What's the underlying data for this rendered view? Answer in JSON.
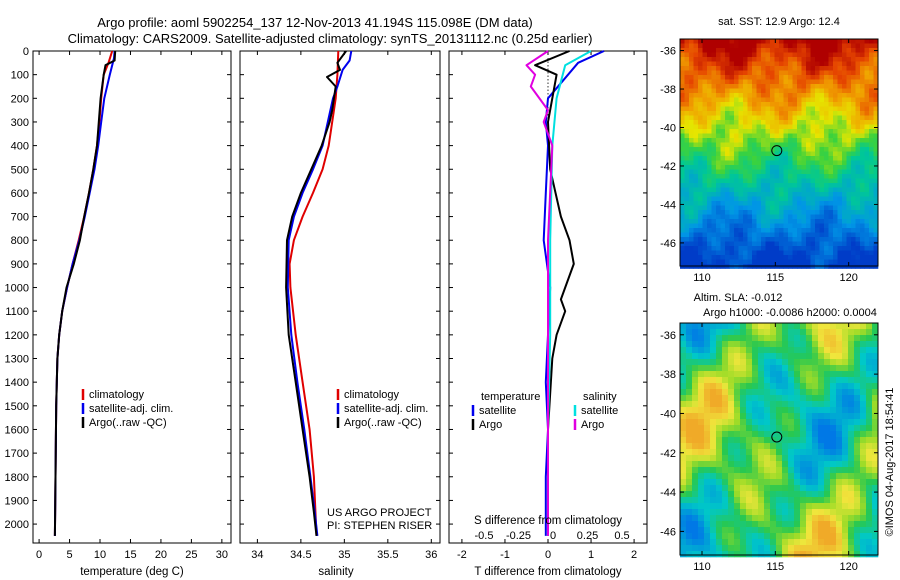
{
  "header": {
    "title_line1": "Argo profile: aoml 5902254_137 12-Nov-2013 41.194S 115.098E (DM data)",
    "title_line2": "Climatology: CARS2009. Satellite-adjusted climatology: synTS_20131112.nc (0.25d earlier)"
  },
  "colors": {
    "climatology": "#e00000",
    "satellite": "#0000ee",
    "argo": "#000000",
    "sat_salinity": "#00e0e0",
    "argo_salinity": "#e000e0"
  },
  "chart_data": [
    {
      "type": "line",
      "name": "temperature-profile",
      "xlabel": "temperature (deg C)",
      "ylabel": "",
      "xlim": [
        -1,
        31.5
      ],
      "ylim": [
        2080,
        0
      ],
      "xticks": [
        0,
        5,
        10,
        15,
        20,
        25,
        30
      ],
      "yticks": [
        0,
        100,
        200,
        300,
        400,
        500,
        600,
        700,
        800,
        900,
        1000,
        1100,
        1200,
        1300,
        1400,
        1500,
        1600,
        1700,
        1800,
        1900,
        2000
      ],
      "series": [
        {
          "name": "climatology",
          "color": "#e00000",
          "x": [
            12.0,
            11.4,
            10.6,
            10.2,
            9.9,
            9.5,
            8.9,
            8.2,
            7.4,
            6.5,
            5.5,
            4.6,
            3.8,
            3.3,
            3.0,
            2.8,
            2.7,
            2.6
          ],
          "y": [
            0,
            50,
            100,
            200,
            300,
            400,
            500,
            600,
            700,
            800,
            900,
            1000,
            1100,
            1200,
            1300,
            1500,
            1800,
            2050
          ]
        },
        {
          "name": "satellite-adj. clim.",
          "color": "#0000ee",
          "x": [
            12.4,
            12.3,
            11.6,
            10.7,
            10.2,
            9.7,
            9.1,
            8.3,
            7.5,
            6.6,
            5.5,
            4.6,
            3.8,
            3.3,
            3.0,
            2.8,
            2.7,
            2.6
          ],
          "y": [
            0,
            30,
            100,
            200,
            300,
            400,
            500,
            600,
            700,
            800,
            900,
            1000,
            1100,
            1200,
            1300,
            1500,
            1800,
            2050
          ]
        },
        {
          "name": "Argo(..raw -QC)",
          "color": "#000000",
          "x": [
            12.5,
            12.4,
            10.9,
            10.6,
            10.1,
            9.8,
            9.5,
            8.9,
            8.2,
            7.4,
            6.7,
            5.7,
            4.5,
            3.8,
            3.3,
            3.0,
            2.8,
            2.7,
            2.6
          ],
          "y": [
            0,
            40,
            60,
            100,
            200,
            300,
            400,
            500,
            600,
            700,
            800,
            900,
            1000,
            1100,
            1200,
            1300,
            1500,
            1800,
            2050
          ]
        }
      ],
      "legend": {
        "placement": "lower-right",
        "entries": [
          "climatology",
          "satellite-adj. clim.",
          "Argo(..raw -QC)"
        ]
      }
    },
    {
      "type": "line",
      "name": "salinity-profile",
      "xlabel": "salinity",
      "ylabel": "",
      "xlim": [
        33.8,
        36.1
      ],
      "ylim": [
        2080,
        0
      ],
      "xticks": [
        34,
        34.5,
        35,
        35.5,
        36
      ],
      "xtick_labels": [
        "34",
        "34.5",
        "35",
        "35.5",
        "36"
      ],
      "series": [
        {
          "name": "climatology",
          "color": "#e00000",
          "x": [
            34.93,
            34.92,
            34.9,
            34.86,
            34.82,
            34.75,
            34.64,
            34.52,
            34.42,
            34.37,
            34.38,
            34.44,
            34.52,
            34.6,
            34.65,
            34.68
          ],
          "y": [
            0,
            100,
            200,
            300,
            400,
            500,
            600,
            700,
            800,
            900,
            1000,
            1200,
            1400,
            1600,
            1800,
            2050
          ]
        },
        {
          "name": "satellite-adj. clim.",
          "color": "#0000ee",
          "x": [
            35.08,
            35.06,
            34.98,
            34.92,
            34.87,
            34.81,
            34.75,
            34.64,
            34.52,
            34.42,
            34.36,
            34.35,
            34.39,
            34.46,
            34.54,
            34.61,
            34.66,
            34.69
          ],
          "y": [
            0,
            40,
            80,
            150,
            200,
            300,
            400,
            500,
            600,
            700,
            800,
            1000,
            1200,
            1400,
            1600,
            1800,
            1950,
            2050
          ]
        },
        {
          "name": "Argo(..raw -QC)",
          "color": "#000000",
          "x": [
            35.02,
            34.92,
            34.95,
            34.8,
            34.9,
            34.86,
            34.83,
            34.74,
            34.62,
            34.5,
            34.4,
            34.34,
            34.33,
            34.36,
            34.44,
            34.52,
            34.6,
            34.65,
            34.68
          ],
          "y": [
            0,
            50,
            80,
            110,
            150,
            250,
            300,
            400,
            500,
            600,
            700,
            800,
            1000,
            1200,
            1400,
            1600,
            1800,
            1950,
            2050
          ]
        }
      ],
      "legend": {
        "placement": "lower-right",
        "entries": [
          "climatology",
          "satellite-adj. clim.",
          "Argo(..raw -QC)"
        ]
      },
      "annotation": [
        "US ARGO PROJECT",
        "PI: STEPHEN RISER"
      ]
    },
    {
      "type": "line",
      "name": "difference-profile",
      "xlabel": "T difference from climatology",
      "top_xlabel": "S difference from climatology",
      "xlim": [
        -2.3,
        2.3
      ],
      "ylim": [
        2080,
        0
      ],
      "xticks": [
        -2,
        -1,
        0,
        1,
        2
      ],
      "top_xticks": [
        -0.5,
        -0.25,
        0,
        0.25,
        0.5
      ],
      "top_xtick_labels": [
        "-0.5",
        "-0.25",
        "0",
        "0.25",
        "0.5"
      ],
      "series": [
        {
          "name": "temperature satellite",
          "color": "#0000ee",
          "x": [
            1.3,
            0.7,
            0.0,
            -0.05,
            0.0,
            -0.05,
            -0.1,
            0.05,
            0.0,
            -0.05,
            0.0,
            -0.05,
            -0.05
          ],
          "y": [
            0,
            50,
            200,
            300,
            400,
            600,
            800,
            1000,
            1200,
            1400,
            1600,
            1800,
            2050
          ]
        },
        {
          "name": "temperature Argo",
          "color": "#000000",
          "x": [
            0.5,
            -0.3,
            0.2,
            0.1,
            0.0,
            0.05,
            0.3,
            0.5,
            0.6,
            0.4,
            0.3,
            0.4,
            0.2,
            0.1,
            0.0,
            0.0
          ],
          "y": [
            0,
            60,
            100,
            200,
            300,
            500,
            700,
            800,
            900,
            1000,
            1050,
            1100,
            1200,
            1300,
            1600,
            2050
          ]
        },
        {
          "name": "salinity satellite",
          "color": "#00e0e0",
          "x": [
            1.0,
            0.4,
            0.2,
            0.1,
            0.05,
            0.05,
            0.0,
            0.0
          ],
          "y": [
            0,
            60,
            200,
            400,
            800,
            1200,
            1600,
            2050
          ]
        },
        {
          "name": "salinity Argo",
          "color": "#e000e0",
          "x": [
            0.0,
            -0.5,
            -0.3,
            -0.4,
            0.0,
            -0.1,
            0.1,
            0.0,
            0.0
          ],
          "y": [
            0,
            60,
            100,
            150,
            250,
            300,
            400,
            800,
            2050
          ]
        }
      ],
      "legend": {
        "placement": "lower-middle",
        "temperature_heading": "temperature",
        "salinity_heading": "salinity",
        "entries": [
          "satellite",
          "Argo",
          "satellite",
          "Argo"
        ]
      }
    },
    {
      "type": "heatmap",
      "name": "sst-map",
      "title": "sat. SST: 12.9 Argo: 12.4",
      "xlim": [
        108.5,
        122
      ],
      "ylim": [
        -47.2,
        -35.4
      ],
      "xticks": [
        110,
        115,
        120
      ],
      "yticks": [
        -36,
        -38,
        -40,
        -42,
        -44,
        -46
      ],
      "marker": {
        "lon": 115.1,
        "lat": -41.2
      }
    },
    {
      "type": "heatmap",
      "name": "sla-map",
      "title_line1": "Altim. SLA: -0.012",
      "title_line2": "Argo h1000: -0.0086 h2000: 0.0004",
      "xlim": [
        108.5,
        122
      ],
      "ylim": [
        -47.2,
        -35.4
      ],
      "xticks": [
        110,
        115,
        120
      ],
      "yticks": [
        -36,
        -38,
        -40,
        -42,
        -44,
        -46
      ],
      "marker": {
        "lon": 115.1,
        "lat": -41.2
      }
    }
  ],
  "footer": {
    "credit": "©IMOS 04-Aug-2017 18:54:41"
  }
}
